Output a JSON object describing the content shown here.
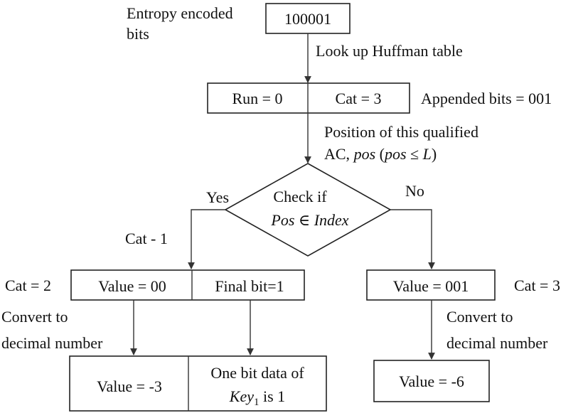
{
  "colors": {
    "stroke": "#222222",
    "text": "#111111",
    "background": "#ffffff"
  },
  "input": {
    "label_line1": "Entropy encoded",
    "label_line2": "bits",
    "bits": "100001"
  },
  "lookup_label": "Look up Huffman table",
  "huffman": {
    "run": "Run = 0",
    "cat": "Cat = 3",
    "appended": "Appended bits = 001"
  },
  "position": {
    "line1": "Position of this qualified",
    "line2_prefix": "AC, ",
    "pos": "pos",
    "open_paren": " (",
    "pos2": "pos",
    "le": " ≤ ",
    "L": "L",
    "close_paren": ")"
  },
  "decision": {
    "line1": "Check if",
    "pos": "Pos",
    "elem": " ∈ ",
    "index": "Index",
    "yes": "Yes",
    "no": "No"
  },
  "left_branch": {
    "cat_minus": "Cat - 1",
    "cat_label": "Cat = 2",
    "value": "Value = 00",
    "final_bit": "Final bit=1",
    "convert_line1": "Convert to",
    "convert_line2": "decimal number",
    "result_value": "Value = -3",
    "onebit_line1": "One bit data of",
    "key": "Key",
    "key_sub": "1",
    "onebit_tail": " is 1"
  },
  "right_branch": {
    "value": "Value = 001",
    "cat_label": "Cat = 3",
    "convert_line1": "Convert to",
    "convert_line2": "decimal number",
    "result_value": "Value = -6"
  }
}
